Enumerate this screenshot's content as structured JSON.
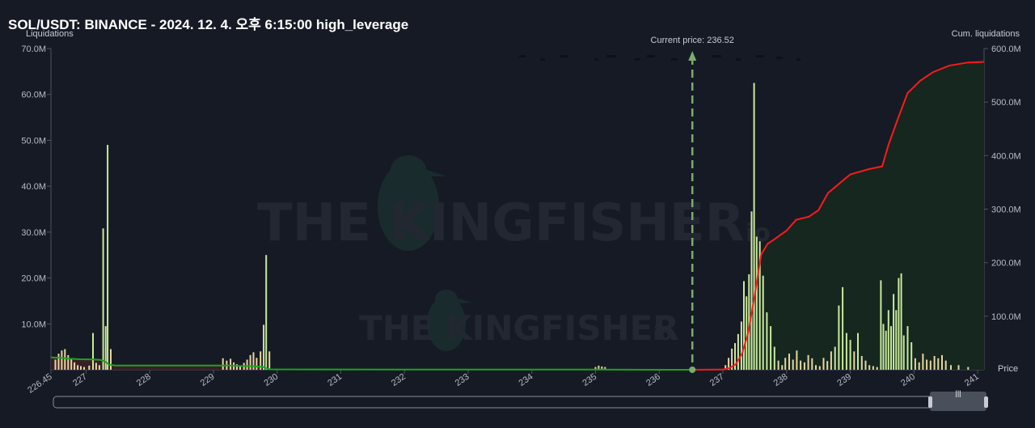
{
  "title": "SOL/USDT: BINANCE - 2024. 12. 4. 오후 6:15:00 high_leverage",
  "watermark": {
    "main": "THE KINGFISHER",
    "suffix": "io"
  },
  "colors": {
    "background": "#161a25",
    "bar": "#c9ea9c",
    "bar_under": "#e8d6a0",
    "left_line": "#19a51e",
    "left_fill": "#3a1e27",
    "right_line": "#ff1a1a",
    "right_fill": "#15271f",
    "current_price_line": "#7dab6c"
  },
  "chart_data": {
    "type": "bar",
    "left_axis": {
      "label": "Liquidations",
      "ticks": [
        "70.0M",
        "60.0M",
        "50.0M",
        "40.0M",
        "30.0M",
        "20.0M",
        "10.0M"
      ],
      "range": [
        0,
        70
      ]
    },
    "right_axis": {
      "label": "Cum. liquidations",
      "ticks": [
        "600.0M",
        "500.0M",
        "400.0M",
        "300.0M",
        "200.0M",
        "100.0M"
      ],
      "range": [
        0,
        600
      ]
    },
    "x_axis": {
      "label": "Price",
      "ticks": [
        "226.45",
        "227",
        "228",
        "229",
        "230",
        "231",
        "232",
        "233",
        "234",
        "235",
        "236",
        "237",
        "238",
        "239",
        "240",
        "241"
      ],
      "range": [
        226.45,
        241.1
      ]
    },
    "current_price": {
      "label": "Current price: 236.52",
      "value": 236.52
    },
    "liquidation_bars": [
      {
        "price": 226.52,
        "value": 2.2
      },
      {
        "price": 226.57,
        "value": 3.5
      },
      {
        "price": 226.62,
        "value": 4.2
      },
      {
        "price": 226.67,
        "value": 4.5
      },
      {
        "price": 226.72,
        "value": 3.2
      },
      {
        "price": 226.77,
        "value": 2.4
      },
      {
        "price": 226.82,
        "value": 1.6
      },
      {
        "price": 226.87,
        "value": 1.0
      },
      {
        "price": 226.92,
        "value": 0.8
      },
      {
        "price": 226.97,
        "value": 0.6
      },
      {
        "price": 227.05,
        "value": 0.9
      },
      {
        "price": 227.11,
        "value": 8.0
      },
      {
        "price": 227.16,
        "value": 1.5
      },
      {
        "price": 227.21,
        "value": 1.0
      },
      {
        "price": 227.27,
        "value": 30.8
      },
      {
        "price": 227.31,
        "value": 9.5
      },
      {
        "price": 227.34,
        "value": 49.0
      },
      {
        "price": 227.39,
        "value": 4.5
      },
      {
        "price": 229.15,
        "value": 2.5
      },
      {
        "price": 229.21,
        "value": 2.0
      },
      {
        "price": 229.27,
        "value": 2.4
      },
      {
        "price": 229.32,
        "value": 1.6
      },
      {
        "price": 229.37,
        "value": 1.2
      },
      {
        "price": 229.42,
        "value": 0.9
      },
      {
        "price": 229.48,
        "value": 1.5
      },
      {
        "price": 229.53,
        "value": 2.2
      },
      {
        "price": 229.58,
        "value": 3.2
      },
      {
        "price": 229.63,
        "value": 3.8
      },
      {
        "price": 229.68,
        "value": 2.6
      },
      {
        "price": 229.74,
        "value": 4.0
      },
      {
        "price": 229.79,
        "value": 9.8
      },
      {
        "price": 229.83,
        "value": 25.0
      },
      {
        "price": 229.88,
        "value": 4.0
      },
      {
        "price": 235.0,
        "value": 0.6
      },
      {
        "price": 235.05,
        "value": 0.9
      },
      {
        "price": 235.1,
        "value": 0.7
      },
      {
        "price": 235.15,
        "value": 0.6
      },
      {
        "price": 237.04,
        "value": 1.0
      },
      {
        "price": 237.09,
        "value": 2.6
      },
      {
        "price": 237.14,
        "value": 4.6
      },
      {
        "price": 237.19,
        "value": 5.8
      },
      {
        "price": 237.24,
        "value": 7.8
      },
      {
        "price": 237.29,
        "value": 10.5
      },
      {
        "price": 237.33,
        "value": 19.3
      },
      {
        "price": 237.37,
        "value": 16.0
      },
      {
        "price": 237.41,
        "value": 20.8
      },
      {
        "price": 237.45,
        "value": 34.5
      },
      {
        "price": 237.49,
        "value": 62.5
      },
      {
        "price": 237.53,
        "value": 29.0
      },
      {
        "price": 237.58,
        "value": 28.0
      },
      {
        "price": 237.63,
        "value": 20.5
      },
      {
        "price": 237.69,
        "value": 12.5
      },
      {
        "price": 237.75,
        "value": 9.5
      },
      {
        "price": 237.81,
        "value": 5.0
      },
      {
        "price": 237.87,
        "value": 2.0
      },
      {
        "price": 237.93,
        "value": 1.0
      },
      {
        "price": 237.98,
        "value": 2.6
      },
      {
        "price": 238.04,
        "value": 3.5
      },
      {
        "price": 238.1,
        "value": 2.2
      },
      {
        "price": 238.16,
        "value": 4.2
      },
      {
        "price": 238.22,
        "value": 2.0
      },
      {
        "price": 238.28,
        "value": 1.6
      },
      {
        "price": 238.34,
        "value": 3.2
      },
      {
        "price": 238.4,
        "value": 2.5
      },
      {
        "price": 238.46,
        "value": 1.0
      },
      {
        "price": 238.52,
        "value": 0.8
      },
      {
        "price": 238.58,
        "value": 2.6
      },
      {
        "price": 238.64,
        "value": 1.9
      },
      {
        "price": 238.7,
        "value": 4.0
      },
      {
        "price": 238.76,
        "value": 5.0
      },
      {
        "price": 238.82,
        "value": 14.0
      },
      {
        "price": 238.88,
        "value": 18.0
      },
      {
        "price": 238.94,
        "value": 8.0
      },
      {
        "price": 239.0,
        "value": 6.5
      },
      {
        "price": 239.06,
        "value": 4.0
      },
      {
        "price": 239.12,
        "value": 8.0
      },
      {
        "price": 239.18,
        "value": 3.0
      },
      {
        "price": 239.24,
        "value": 2.0
      },
      {
        "price": 239.3,
        "value": 1.0
      },
      {
        "price": 239.36,
        "value": 0.8
      },
      {
        "price": 239.42,
        "value": 0.6
      },
      {
        "price": 239.48,
        "value": 19.5
      },
      {
        "price": 239.52,
        "value": 10.0
      },
      {
        "price": 239.56,
        "value": 8.5
      },
      {
        "price": 239.6,
        "value": 13.0
      },
      {
        "price": 239.64,
        "value": 9.5
      },
      {
        "price": 239.68,
        "value": 16.5
      },
      {
        "price": 239.72,
        "value": 13.0
      },
      {
        "price": 239.76,
        "value": 20.0
      },
      {
        "price": 239.8,
        "value": 21.0
      },
      {
        "price": 239.84,
        "value": 7.5
      },
      {
        "price": 239.9,
        "value": 9.5
      },
      {
        "price": 239.96,
        "value": 6.0
      },
      {
        "price": 240.02,
        "value": 2.5
      },
      {
        "price": 240.08,
        "value": 1.6
      },
      {
        "price": 240.14,
        "value": 3.5
      },
      {
        "price": 240.2,
        "value": 2.2
      },
      {
        "price": 240.26,
        "value": 2.0
      },
      {
        "price": 240.32,
        "value": 3.0
      },
      {
        "price": 240.38,
        "value": 2.5
      },
      {
        "price": 240.44,
        "value": 3.2
      },
      {
        "price": 240.5,
        "value": 2.0
      },
      {
        "price": 240.58,
        "value": 1.0
      },
      {
        "price": 240.7,
        "value": 1.0
      },
      {
        "price": 240.85,
        "value": 0.6
      }
    ],
    "cumulative_short": [
      [
        226.45,
        23.1
      ],
      [
        226.6,
        22.3
      ],
      [
        226.75,
        20.5
      ],
      [
        226.9,
        19.7
      ],
      [
        227.1,
        19.2
      ],
      [
        227.22,
        18.6
      ],
      [
        227.29,
        16.0
      ],
      [
        227.36,
        10.0
      ],
      [
        227.45,
        8.0
      ],
      [
        227.6,
        7.9
      ],
      [
        228.0,
        7.9
      ],
      [
        228.5,
        7.9
      ],
      [
        229.0,
        7.9
      ],
      [
        229.2,
        7.8
      ],
      [
        229.45,
        7.0
      ],
      [
        229.65,
        6.3
      ],
      [
        229.78,
        5.3
      ],
      [
        229.85,
        2.0
      ],
      [
        229.9,
        0.7
      ],
      [
        230.5,
        0.6
      ],
      [
        232.0,
        0.5
      ],
      [
        234.0,
        0.4
      ],
      [
        235.0,
        0.35
      ],
      [
        235.5,
        0.15
      ],
      [
        236.0,
        0.05
      ],
      [
        236.52,
        0.0
      ]
    ],
    "cumulative_long": [
      [
        236.52,
        0.0
      ],
      [
        237.0,
        0.5
      ],
      [
        237.1,
        3
      ],
      [
        237.2,
        10
      ],
      [
        237.3,
        30
      ],
      [
        237.4,
        70
      ],
      [
        237.5,
        140
      ],
      [
        237.6,
        215
      ],
      [
        237.7,
        235
      ],
      [
        237.8,
        243
      ],
      [
        238.0,
        260
      ],
      [
        238.15,
        280
      ],
      [
        238.35,
        286
      ],
      [
        238.5,
        298
      ],
      [
        238.65,
        330
      ],
      [
        238.8,
        345
      ],
      [
        239.0,
        365
      ],
      [
        239.3,
        375
      ],
      [
        239.5,
        380
      ],
      [
        239.6,
        420
      ],
      [
        239.75,
        470
      ],
      [
        239.9,
        517
      ],
      [
        240.1,
        540
      ],
      [
        240.3,
        556
      ],
      [
        240.55,
        568
      ],
      [
        240.85,
        574
      ],
      [
        241.1,
        575
      ]
    ]
  }
}
